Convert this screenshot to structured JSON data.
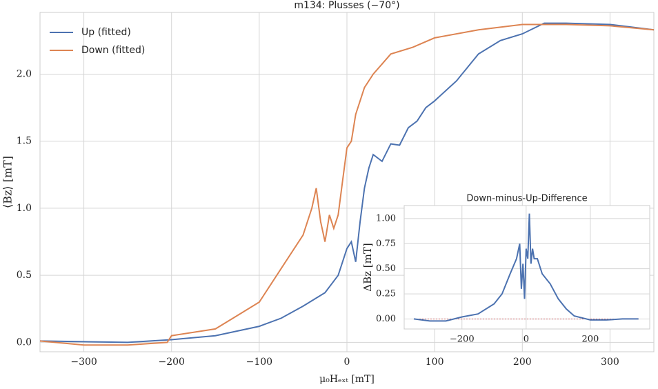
{
  "chart_data": [
    {
      "type": "line",
      "title": "m134: Plusses (−70°)",
      "x_label": "μ₀Hₑₓₜ [mT]",
      "y_label": "⟨Bz⟩ [mT]",
      "xlim": [
        -350,
        350
      ],
      "ylim": [
        -0.07,
        2.46
      ],
      "xticks": [
        {
          "value": -300,
          "label": "−300"
        },
        {
          "value": -200,
          "label": "−200"
        },
        {
          "value": -100,
          "label": "−100"
        },
        0,
        100,
        200,
        300
      ],
      "yticks": [
        {
          "value": 0,
          "label": "0.0"
        },
        {
          "value": 0.5,
          "label": "0.5"
        },
        {
          "value": 1,
          "label": "1.0"
        },
        {
          "value": 1.5,
          "label": "1.5"
        },
        {
          "value": 2,
          "label": "2.0"
        }
      ],
      "grid": true,
      "legend": "upper-left",
      "series": [
        {
          "name": "Up (fitted)",
          "color": "#4c72b0",
          "x": [
            -350,
            -300,
            -250,
            -200,
            -150,
            -100,
            -75,
            -50,
            -25,
            -10,
            0,
            5,
            10,
            15,
            20,
            25,
            30,
            40,
            50,
            60,
            70,
            80,
            90,
            100,
            125,
            150,
            175,
            200,
            225,
            250,
            300,
            350
          ],
          "values": [
            0.01,
            0.005,
            0,
            0.02,
            0.05,
            0.12,
            0.18,
            0.27,
            0.37,
            0.5,
            0.7,
            0.75,
            0.6,
            0.9,
            1.15,
            1.3,
            1.4,
            1.35,
            1.48,
            1.47,
            1.6,
            1.65,
            1.75,
            1.8,
            1.95,
            2.15,
            2.25,
            2.3,
            2.38,
            2.38,
            2.37,
            2.33
          ]
        },
        {
          "name": "Down (fitted)",
          "color": "#dd8452",
          "x": [
            -350,
            -300,
            -250,
            -205,
            -200,
            -150,
            -125,
            -100,
            -75,
            -50,
            -40,
            -35,
            -30,
            -25,
            -20,
            -15,
            -10,
            -5,
            0,
            5,
            10,
            20,
            30,
            50,
            75,
            100,
            150,
            200,
            250,
            300,
            350
          ],
          "values": [
            0.01,
            -0.02,
            -0.02,
            0,
            0.05,
            0.1,
            0.2,
            0.3,
            0.55,
            0.8,
            1.0,
            1.15,
            0.9,
            0.75,
            0.95,
            0.85,
            0.95,
            1.2,
            1.45,
            1.5,
            1.7,
            1.9,
            2.0,
            2.15,
            2.2,
            2.27,
            2.33,
            2.37,
            2.37,
            2.36,
            2.33
          ]
        }
      ]
    },
    {
      "type": "line",
      "title": "Down-minus-Up-Difference",
      "y_label": "ΔBz [mT]",
      "xlim": [
        -380,
        385
      ],
      "ylim": [
        -0.1,
        1.13
      ],
      "xticks": [
        {
          "value": -200,
          "label": "−200"
        },
        0,
        200
      ],
      "yticks": [
        {
          "value": 0,
          "label": "0.00"
        },
        {
          "value": 0.25,
          "label": "0.25"
        },
        {
          "value": 0.5,
          "label": "0.50"
        },
        {
          "value": 0.75,
          "label": "0.75"
        },
        {
          "value": 1,
          "label": "1.00"
        }
      ],
      "grid": true,
      "reference_line": {
        "value": 0,
        "color": "#c44e52"
      },
      "series": [
        {
          "color": "#4c72b0",
          "x": [
            -350,
            -300,
            -250,
            -200,
            -150,
            -100,
            -75,
            -50,
            -30,
            -20,
            -15,
            -10,
            -5,
            0,
            5,
            10,
            15,
            20,
            25,
            35,
            50,
            75,
            100,
            125,
            150,
            200,
            250,
            300,
            350
          ],
          "values": [
            0,
            -0.02,
            -0.02,
            0.02,
            0.05,
            0.15,
            0.25,
            0.45,
            0.6,
            0.75,
            0.3,
            0.55,
            0.2,
            0.7,
            0.6,
            1.05,
            0.55,
            0.7,
            0.6,
            0.6,
            0.45,
            0.35,
            0.2,
            0.1,
            0.03,
            -0.01,
            -0.01,
            0,
            0
          ]
        }
      ]
    }
  ]
}
